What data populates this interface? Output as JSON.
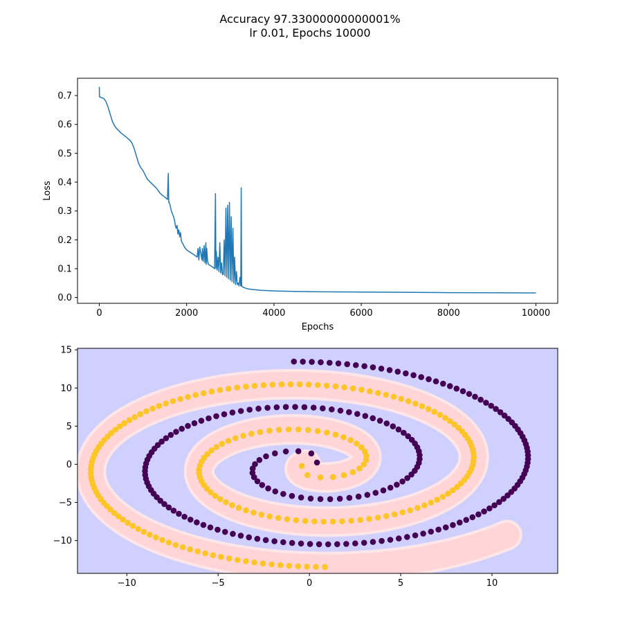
{
  "figure": {
    "title_line1": "Accuracy 97.33000000000001%",
    "title_line2": "lr 0.01, Epochs 10000"
  },
  "chart_data": [
    {
      "type": "line",
      "title": "",
      "xlabel": "Epochs",
      "ylabel": "Loss",
      "xlim": [
        -500,
        10500
      ],
      "ylim": [
        -0.02,
        0.76
      ],
      "xticks": [
        0,
        2000,
        4000,
        6000,
        8000,
        10000
      ],
      "xtick_labels": [
        "0",
        "2000",
        "4000",
        "6000",
        "8000",
        "10000"
      ],
      "yticks": [
        0.0,
        0.1,
        0.2,
        0.3,
        0.4,
        0.5,
        0.6,
        0.7
      ],
      "ytick_labels": [
        "0.0",
        "0.1",
        "0.2",
        "0.3",
        "0.4",
        "0.5",
        "0.6",
        "0.7"
      ],
      "grid": false,
      "series": [
        {
          "color": "#1f77b4",
          "x": [
            0,
            2,
            5,
            20,
            50,
            100,
            150,
            200,
            250,
            300,
            350,
            400,
            500,
            600,
            700,
            750,
            800,
            850,
            900,
            950,
            1000,
            1050,
            1100,
            1200,
            1300,
            1400,
            1500,
            1560,
            1580,
            1590,
            1600,
            1620,
            1650,
            1700,
            1720,
            1740,
            1760,
            1780,
            1800,
            1820,
            1840,
            1860,
            1880,
            1900,
            1950,
            2000,
            2050,
            2100,
            2150,
            2200,
            2240,
            2260,
            2280,
            2300,
            2350,
            2360,
            2380,
            2400,
            2420,
            2440,
            2450,
            2460,
            2480,
            2500,
            2550,
            2600,
            2640,
            2660,
            2670,
            2680,
            2700,
            2720,
            2740,
            2760,
            2780,
            2800,
            2820,
            2840,
            2860,
            2880,
            2900,
            2920,
            2940,
            2960,
            2980,
            3000,
            3020,
            3040,
            3060,
            3080,
            3100,
            3120,
            3140,
            3160,
            3180,
            3200,
            3220,
            3240,
            3250,
            3260,
            3300,
            3400,
            3500,
            3700,
            4000,
            4500,
            5000,
            6000,
            7000,
            8000,
            9000,
            10000
          ],
          "y": [
            0.73,
            0.7,
            0.695,
            0.695,
            0.693,
            0.69,
            0.68,
            0.66,
            0.635,
            0.61,
            0.595,
            0.585,
            0.57,
            0.558,
            0.545,
            0.535,
            0.515,
            0.49,
            0.465,
            0.45,
            0.44,
            0.425,
            0.41,
            0.395,
            0.38,
            0.36,
            0.348,
            0.34,
            0.43,
            0.33,
            0.33,
            0.32,
            0.3,
            0.28,
            0.27,
            0.25,
            0.24,
            0.25,
            0.22,
            0.235,
            0.21,
            0.225,
            0.195,
            0.19,
            0.175,
            0.165,
            0.16,
            0.155,
            0.15,
            0.145,
            0.14,
            0.17,
            0.13,
            0.175,
            0.13,
            0.17,
            0.125,
            0.18,
            0.12,
            0.19,
            0.115,
            0.17,
            0.125,
            0.115,
            0.11,
            0.105,
            0.1,
            0.36,
            0.1,
            0.16,
            0.095,
            0.14,
            0.09,
            0.19,
            0.085,
            0.12,
            0.08,
            0.08,
            0.2,
            0.075,
            0.31,
            0.07,
            0.32,
            0.065,
            0.33,
            0.06,
            0.28,
            0.055,
            0.24,
            0.05,
            0.14,
            0.045,
            0.09,
            0.045,
            0.05,
            0.04,
            0.07,
            0.04,
            0.38,
            0.04,
            0.035,
            0.03,
            0.028,
            0.025,
            0.023,
            0.021,
            0.02,
            0.019,
            0.018,
            0.017,
            0.0165,
            0.016
          ]
        }
      ]
    },
    {
      "type": "scatter",
      "title": "",
      "xlabel": "",
      "ylabel": "",
      "xlim": [
        -12.7,
        13.6
      ],
      "ylim": [
        -14.3,
        15.2
      ],
      "xticks": [
        -10,
        -5,
        0,
        5,
        10
      ],
      "xtick_labels": [
        "−10",
        "−5",
        "0",
        "5",
        "10"
      ],
      "yticks": [
        -10,
        -5,
        0,
        5,
        10,
        15
      ],
      "ytick_labels": [
        "−10",
        "−5",
        "0",
        "5",
        "10",
        "15"
      ],
      "grid": false,
      "background_region_color": "#d0d0ff",
      "class_region_color": "#ffd5d8",
      "series": [
        {
          "class": 0,
          "color": "#440154",
          "spiral_phase": 0,
          "points": 190,
          "theta_max": 14.2,
          "radius_scale": 0.95
        },
        {
          "class": 1,
          "color": "#fdc527",
          "spiral_phase": 3.14159,
          "points": 190,
          "theta_max": 14.2,
          "radius_scale": 0.95
        }
      ]
    }
  ]
}
